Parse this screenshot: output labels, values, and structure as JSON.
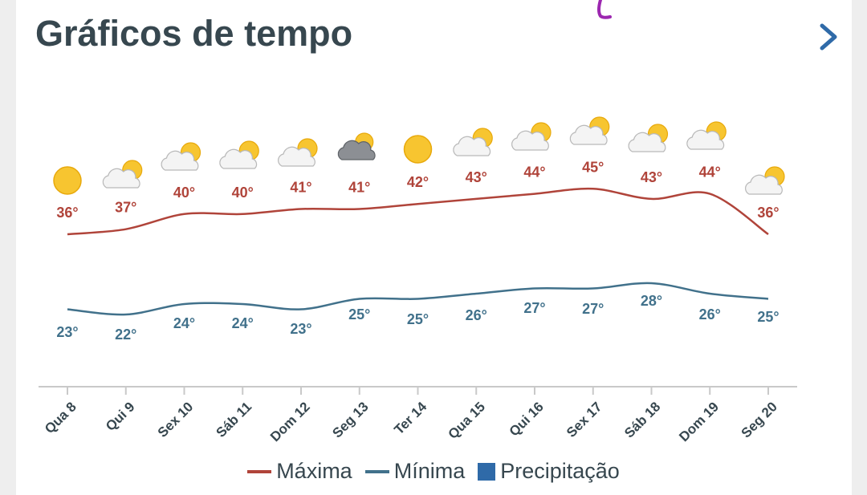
{
  "header": {
    "title": "Gráficos de tempo",
    "next_icon": "chevron-right-icon"
  },
  "colors": {
    "max_line": "#b0443a",
    "min_line": "#41718b",
    "max_label": "#b0443a",
    "min_label": "#41718b",
    "precip": "#2f6aa8",
    "axis": "#c9c9c9",
    "tick_text": "#37474f"
  },
  "chart_data": {
    "type": "line",
    "categories": [
      "Qua 8",
      "Qui 9",
      "Sex 10",
      "Sáb 11",
      "Dom 12",
      "Seg 13",
      "Ter 14",
      "Qua 15",
      "Qui 16",
      "Sex 17",
      "Sáb 18",
      "Dom 19",
      "Seg 20"
    ],
    "series": [
      {
        "name": "Máxima",
        "values": [
          36,
          37,
          40,
          40,
          41,
          41,
          42,
          43,
          44,
          45,
          43,
          44,
          36
        ]
      },
      {
        "name": "Mínima",
        "values": [
          23,
          22,
          24,
          24,
          23,
          25,
          25,
          26,
          27,
          27,
          28,
          26,
          25
        ]
      }
    ],
    "value_labels": {
      "max": [
        "36°",
        "37°",
        "40°",
        "40°",
        "41°",
        "41°",
        "42°",
        "43°",
        "44°",
        "45°",
        "43°",
        "44°",
        "36°"
      ],
      "min": [
        "23°",
        "22°",
        "24°",
        "24°",
        "23°",
        "25°",
        "25°",
        "26°",
        "27°",
        "27°",
        "28°",
        "26°",
        "25°"
      ]
    },
    "weather_icons": [
      "sun-icon",
      "partly-cloudy-icon",
      "partly-cloudy-icon",
      "partly-cloudy-icon",
      "partly-cloudy-icon",
      "cloudy-icon",
      "sun-icon",
      "partly-cloudy-icon",
      "partly-cloudy-icon",
      "partly-cloudy-icon",
      "partly-cloudy-icon",
      "partly-cloudy-icon",
      "partly-cloudy-icon"
    ],
    "legend": [
      "Máxima",
      "Mínima",
      "Precipitação"
    ],
    "legend_position": "bottom",
    "grid": false
  }
}
